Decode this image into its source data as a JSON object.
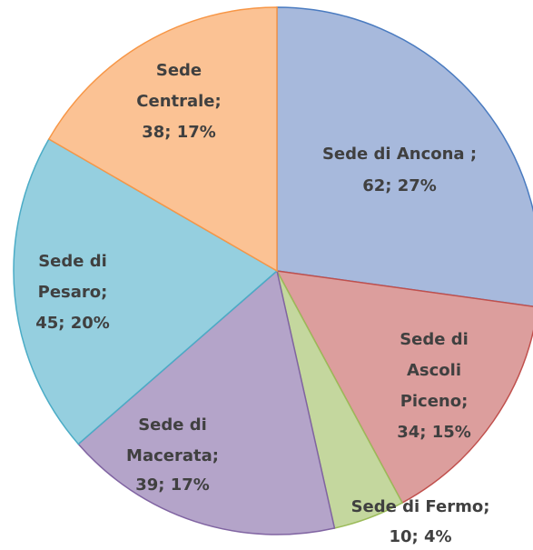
{
  "chart_data": {
    "type": "pie",
    "categories": [
      "Sede di Ancona  ;",
      "Sede di Ascoli Piceno;",
      "Sede di Fermo;",
      "Sede di Macerata;",
      "Sede di Pesaro;",
      "Sede Centrale;"
    ],
    "values": [
      62,
      34,
      10,
      39,
      45,
      38
    ],
    "value_labels": [
      "62; 27%",
      "34; 15%",
      "10; 4%",
      "39; 17%",
      "45; 20%",
      "38; 17%"
    ],
    "colors": [
      "#a7b9dc",
      "#dc9e9d",
      "#c4d79e",
      "#b4a4c9",
      "#95cfdf",
      "#fbc294"
    ],
    "edge_colors": [
      "#4a7bc0",
      "#c0504d",
      "#9bbb59",
      "#8064a2",
      "#4bacc6",
      "#f79646"
    ]
  }
}
